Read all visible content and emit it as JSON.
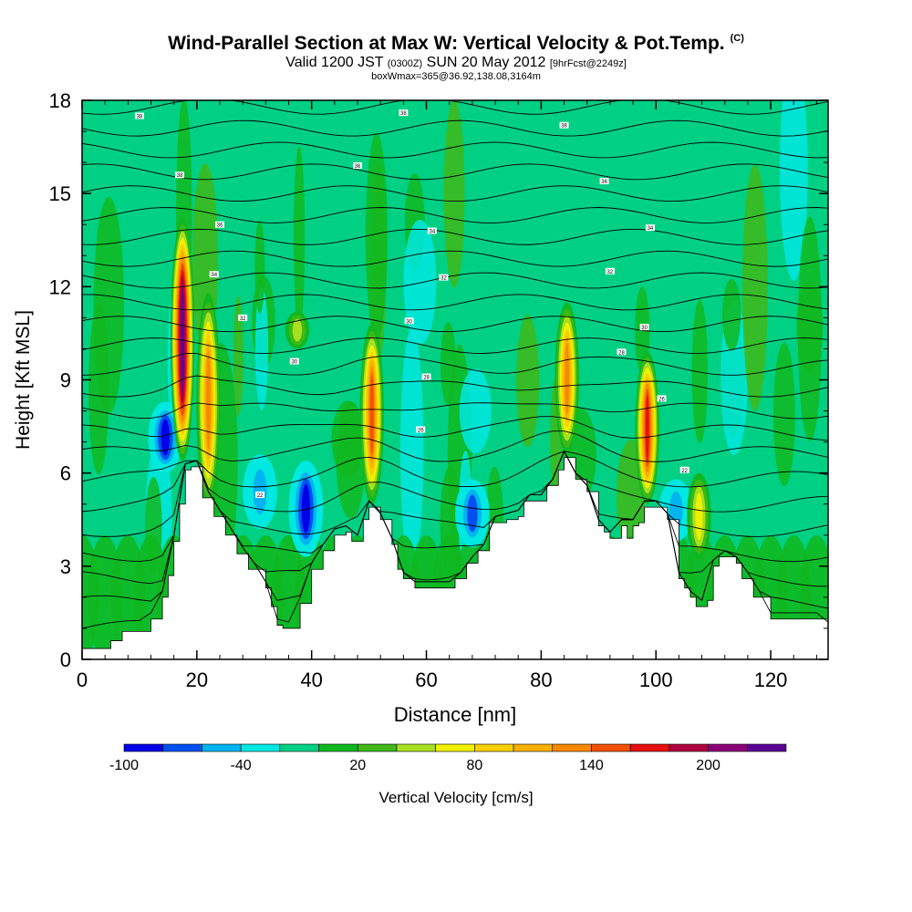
{
  "title": {
    "main": "Wind-Parallel Section at Max W: Vertical Velocity & Pot.Temp.",
    "copyright": "(C)",
    "valid_prefix": "Valid 1200 JST",
    "valid_z": "(0300Z)",
    "valid_date": "SUN 20 May 2012",
    "forecast": "[9hrFcst@2249z]",
    "box": "boxWmax=365@36.92,138.08,3164m"
  },
  "chart_data": {
    "type": "heatmap",
    "xlabel": "Distance [nm]",
    "ylabel": "Height [Kft MSL]",
    "xlim": [
      0,
      130
    ],
    "ylim": [
      0,
      18
    ],
    "x_ticks": [
      "0",
      "20",
      "40",
      "60",
      "80",
      "100",
      "120"
    ],
    "y_ticks": [
      "0",
      "3",
      "6",
      "9",
      "12",
      "15",
      "18"
    ],
    "colorbar": {
      "label": "Vertical Velocity [cm/s]",
      "tick_labels": [
        "-100",
        "-40",
        "20",
        "80",
        "140",
        "200"
      ],
      "colors": [
        "#0000e8",
        "#0050f0",
        "#00b4f0",
        "#00e8e0",
        "#00d084",
        "#10b820",
        "#40b818",
        "#a8e020",
        "#f0f000",
        "#f8d000",
        "#f8b000",
        "#f88800",
        "#f05000",
        "#e81010",
        "#b00040",
        "#8c0078",
        "#5a0096"
      ]
    },
    "terrain_kft": [
      [
        0,
        0.35
      ],
      [
        3,
        0.35
      ],
      [
        5,
        0.6
      ],
      [
        7,
        0.9
      ],
      [
        9,
        0.9
      ],
      [
        12,
        1.3
      ],
      [
        14,
        2.0
      ],
      [
        15,
        2.7
      ],
      [
        16,
        3.8
      ],
      [
        17,
        5.0
      ],
      [
        18,
        6.1
      ],
      [
        19,
        6.2
      ],
      [
        20,
        6.2
      ],
      [
        21,
        5.2
      ],
      [
        23,
        4.6
      ],
      [
        25,
        4.0
      ],
      [
        27,
        3.4
      ],
      [
        29,
        2.9
      ],
      [
        31,
        2.9
      ],
      [
        32,
        2.3
      ],
      [
        33,
        1.7
      ],
      [
        34,
        1.1
      ],
      [
        35,
        1.0
      ],
      [
        36,
        1.0
      ],
      [
        38,
        1.8
      ],
      [
        40,
        2.9
      ],
      [
        42,
        3.5
      ],
      [
        44,
        4.0
      ],
      [
        46,
        4.1
      ],
      [
        47,
        3.8
      ],
      [
        48,
        3.8
      ],
      [
        49,
        4.5
      ],
      [
        50,
        4.9
      ],
      [
        51,
        4.9
      ],
      [
        52,
        4.5
      ],
      [
        54,
        3.7
      ],
      [
        55,
        2.9
      ],
      [
        56,
        2.6
      ],
      [
        58,
        2.3
      ],
      [
        62,
        2.3
      ],
      [
        64,
        2.3
      ],
      [
        65,
        2.6
      ],
      [
        67,
        3.1
      ],
      [
        69,
        3.5
      ],
      [
        71,
        4.4
      ],
      [
        74,
        4.5
      ],
      [
        76,
        4.6
      ],
      [
        77,
        5.1
      ],
      [
        80,
        5.1
      ],
      [
        81,
        5.6
      ],
      [
        83,
        6.1
      ],
      [
        84,
        6.5
      ],
      [
        85,
        6.5
      ],
      [
        86,
        5.8
      ],
      [
        88,
        5.4
      ],
      [
        90,
        4.3
      ],
      [
        91,
        4.1
      ],
      [
        92,
        3.9
      ],
      [
        93,
        3.9
      ],
      [
        94,
        4.3
      ],
      [
        95,
        3.9
      ],
      [
        96,
        4.3
      ],
      [
        97,
        4.4
      ],
      [
        98,
        4.9
      ],
      [
        101,
        4.9
      ],
      [
        102,
        4.5
      ],
      [
        104,
        2.6
      ],
      [
        105,
        2.3
      ],
      [
        106,
        2.0
      ],
      [
        107,
        1.7
      ],
      [
        109,
        1.9
      ],
      [
        110,
        3.0
      ],
      [
        111,
        3.3
      ],
      [
        113,
        3.3
      ],
      [
        114,
        3.1
      ],
      [
        115,
        2.6
      ],
      [
        117,
        2.0
      ],
      [
        120,
        1.3
      ],
      [
        130,
        1.3
      ],
      [
        130,
        1.0
      ]
    ],
    "updraft_cores": [
      {
        "x": 17.5,
        "bottom": 6.4,
        "top": 14.2,
        "max_cms": 240
      },
      {
        "x": 22.0,
        "bottom": 4.9,
        "top": 11.8,
        "max_cms": 120
      },
      {
        "x": 50.5,
        "bottom": 5.0,
        "top": 10.8,
        "max_cms": 140
      },
      {
        "x": 84.5,
        "bottom": 6.6,
        "top": 11.5,
        "max_cms": 120
      },
      {
        "x": 98.5,
        "bottom": 5.0,
        "top": 9.9,
        "max_cms": 160
      },
      {
        "x": 107.5,
        "bottom": 3.2,
        "top": 6.0,
        "max_cms": 60
      },
      {
        "x": 37.5,
        "bottom": 10.0,
        "top": 11.2,
        "max_cms": 50
      }
    ],
    "downdraft_cores": [
      {
        "x": 14.5,
        "bottom": 6.0,
        "top": 8.3,
        "min_cms": -80
      },
      {
        "x": 39.0,
        "bottom": 3.3,
        "top": 6.4,
        "min_cms": -100
      },
      {
        "x": 68.0,
        "bottom": 3.6,
        "top": 5.8,
        "min_cms": -70
      },
      {
        "x": 31.0,
        "bottom": 4.2,
        "top": 6.6,
        "min_cms": -55
      },
      {
        "x": 103.5,
        "bottom": 3.8,
        "top": 5.8,
        "min_cms": -50
      }
    ],
    "theta_contour_base_kft": [
      1.0,
      1.8,
      2.6,
      3.4,
      4.2,
      5.0,
      5.8,
      6.6,
      7.3,
      8.0,
      8.7,
      9.4,
      10.1,
      10.8,
      11.5,
      12.2,
      12.9,
      13.6,
      14.3,
      15.0,
      15.7,
      16.4,
      17.1,
      17.8
    ],
    "contour_labels": [
      {
        "x": 10,
        "y": 17.5,
        "t": "38"
      },
      {
        "x": 56,
        "y": 17.6,
        "t": "38"
      },
      {
        "x": 84,
        "y": 17.2,
        "t": "38"
      },
      {
        "x": 17,
        "y": 15.6,
        "t": "38"
      },
      {
        "x": 48,
        "y": 15.9,
        "t": "36"
      },
      {
        "x": 91,
        "y": 15.4,
        "t": "36"
      },
      {
        "x": 24,
        "y": 14.0,
        "t": "36"
      },
      {
        "x": 61,
        "y": 13.8,
        "t": "34"
      },
      {
        "x": 99,
        "y": 13.9,
        "t": "34"
      },
      {
        "x": 23,
        "y": 12.4,
        "t": "34"
      },
      {
        "x": 63,
        "y": 12.3,
        "t": "32"
      },
      {
        "x": 92,
        "y": 12.5,
        "t": "32"
      },
      {
        "x": 28,
        "y": 11.0,
        "t": "32"
      },
      {
        "x": 57,
        "y": 10.9,
        "t": "30"
      },
      {
        "x": 98,
        "y": 10.7,
        "t": "30"
      },
      {
        "x": 37,
        "y": 9.6,
        "t": "30"
      },
      {
        "x": 60,
        "y": 9.1,
        "t": "28"
      },
      {
        "x": 94,
        "y": 9.9,
        "t": "28"
      },
      {
        "x": 59,
        "y": 7.4,
        "t": "26"
      },
      {
        "x": 101,
        "y": 8.4,
        "t": "26"
      },
      {
        "x": 31,
        "y": 5.3,
        "t": "22"
      },
      {
        "x": 105,
        "y": 6.1,
        "t": "22"
      }
    ]
  }
}
